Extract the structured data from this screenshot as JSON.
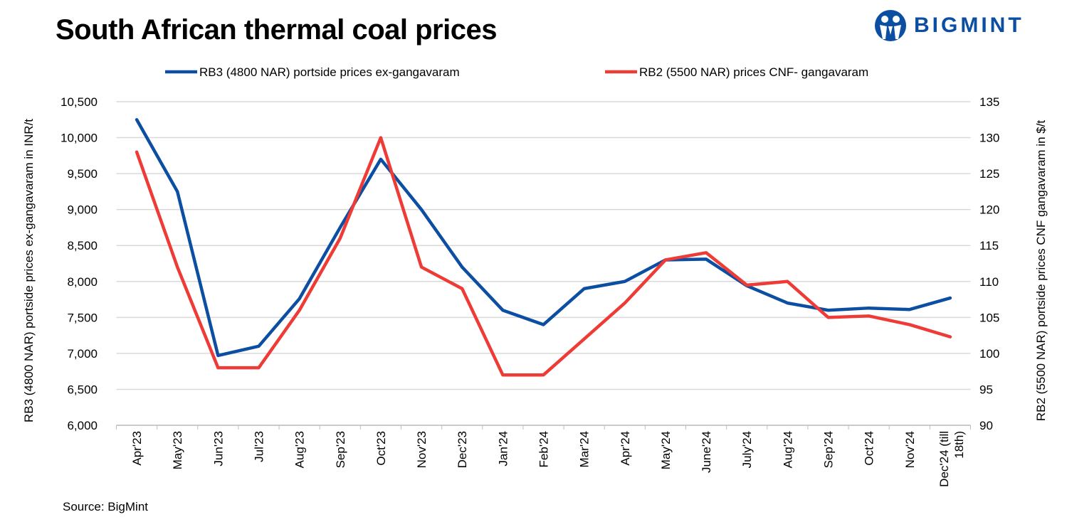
{
  "title": "South African thermal coal prices",
  "logo": {
    "text": "BIGMINT",
    "color": "#0b4ea2"
  },
  "source": "Source: BigMint",
  "chart_data": {
    "type": "line",
    "title": "South African thermal coal prices",
    "categories": [
      "Apr'23",
      "May'23",
      "Jun'23",
      "Jul'23",
      "Aug'23",
      "Sep'23",
      "Oct'23",
      "Nov'23",
      "Dec'23",
      "Jan'24",
      "Feb'24",
      "Mar'24",
      "Apr'24",
      "May'24",
      "June'24",
      "July'24",
      "Aug'24",
      "Sep'24",
      "Oct'24",
      "Nov'24",
      "Dec'24 (till 18th)"
    ],
    "ylabel_left": "RB3 (4800 NAR) portside prices ex-gangavaram  in INR/t",
    "ylabel_right": "RB2 (5500 NAR) portside prices CNF  gangavaram  in $/t",
    "ylim_left": [
      6000,
      10500
    ],
    "yticks_left": [
      "6,000",
      "6,500",
      "7,000",
      "7,500",
      "8,000",
      "8,500",
      "9,000",
      "9,500",
      "10,000",
      "10,500"
    ],
    "ylim_right": [
      90,
      135
    ],
    "yticks_right": [
      "90",
      "95",
      "100",
      "105",
      "110",
      "115",
      "120",
      "125",
      "130",
      "135"
    ],
    "grid": true,
    "legend_position": "top",
    "series": [
      {
        "name": "RB3 (4800 NAR) portside prices ex-gangavaram",
        "axis": "left",
        "color": "#0b4ea2",
        "values": [
          10250,
          9250,
          6970,
          7100,
          7760,
          8750,
          9700,
          9000,
          8200,
          7600,
          7400,
          7900,
          8000,
          8300,
          8310,
          7940,
          7700,
          7600,
          7630,
          7610,
          7770
        ]
      },
      {
        "name": "RB2 (5500 NAR) prices CNF- gangavaram",
        "axis": "right",
        "color": "#ee3b36",
        "values": [
          128,
          112,
          98,
          98,
          106,
          116,
          130,
          112,
          109,
          97,
          97,
          102,
          107,
          113,
          114,
          109.5,
          110,
          105,
          105.2,
          104,
          102.3
        ]
      }
    ]
  }
}
